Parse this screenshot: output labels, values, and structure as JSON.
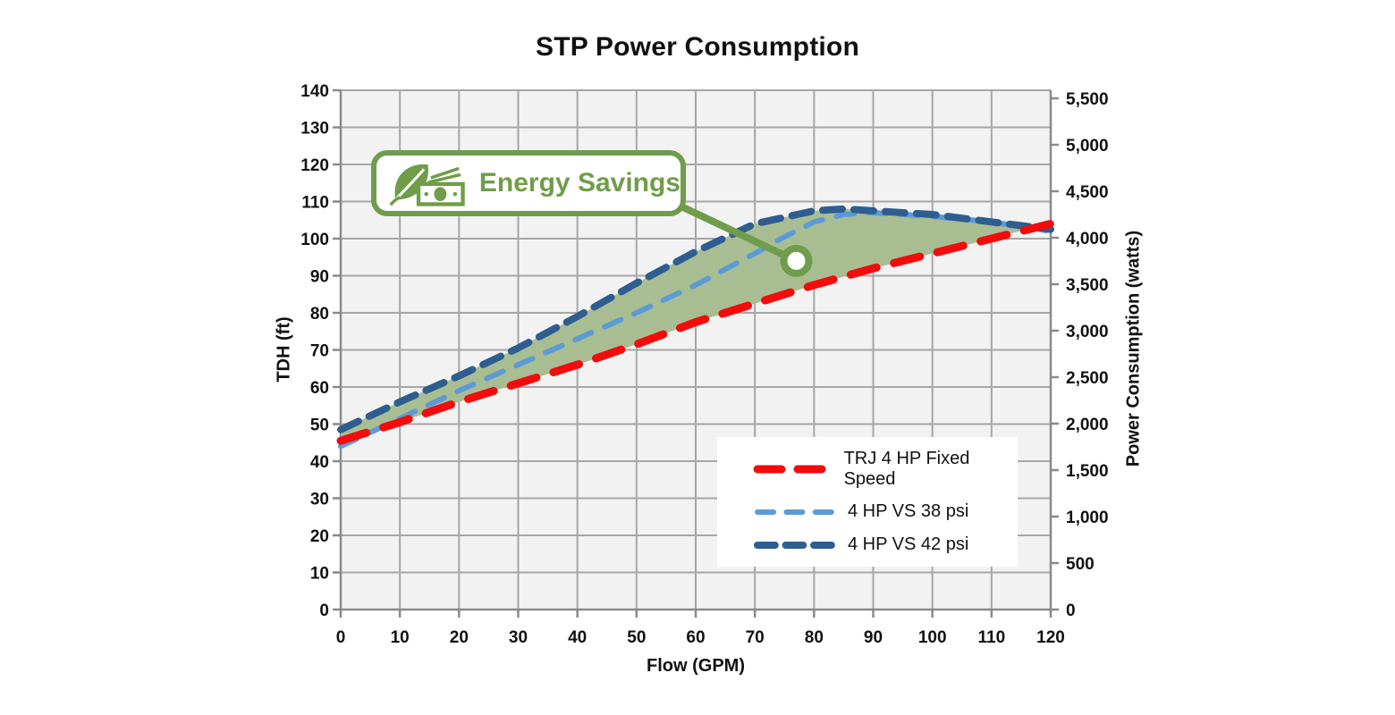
{
  "page": {
    "background": "#ffffff"
  },
  "chart_data": {
    "type": "line",
    "title": "STP Power Consumption",
    "xlabel": "Flow (GPM)",
    "ylabel": "TDH (ft)",
    "y2label": "Power Consumption (watts)",
    "xlim": [
      0,
      120
    ],
    "ylim": [
      0,
      140
    ],
    "y2lim": [
      0,
      5500
    ],
    "xticks": [
      0,
      10,
      20,
      30,
      40,
      50,
      60,
      70,
      80,
      90,
      100,
      110,
      120
    ],
    "yticks": [
      0,
      10,
      20,
      30,
      40,
      50,
      60,
      70,
      80,
      90,
      100,
      110,
      120,
      130,
      140
    ],
    "y2ticks": [
      0,
      500,
      1000,
      1500,
      2000,
      2500,
      3000,
      3500,
      4000,
      4500,
      5000,
      5500
    ],
    "grid": true,
    "plot_bg": "#f2f2f2",
    "grid_color": "#a6a6a6",
    "axis_color": "#8a8a8a",
    "tick_color": "#111111",
    "legend_position": "inside-bottom-right",
    "series": [
      {
        "name": "TRJ 4 HP Fixed Speed",
        "color": "#f40b0b",
        "dash": [
          30,
          20
        ],
        "width": 9,
        "points": [
          [
            0,
            45.5
          ],
          [
            10,
            50.5
          ],
          [
            20,
            56
          ],
          [
            30,
            61
          ],
          [
            40,
            66
          ],
          [
            50,
            71.5
          ],
          [
            60,
            77.5
          ],
          [
            70,
            82.5
          ],
          [
            80,
            87.5
          ],
          [
            90,
            92
          ],
          [
            100,
            96
          ],
          [
            110,
            100
          ],
          [
            120,
            104
          ]
        ]
      },
      {
        "name": "4 HP VS 38 psi",
        "color": "#5b9bd5",
        "dash": [
          20,
          16
        ],
        "width": 6,
        "points": [
          [
            0,
            44
          ],
          [
            10,
            51.5
          ],
          [
            20,
            59
          ],
          [
            30,
            66
          ],
          [
            40,
            73
          ],
          [
            50,
            80
          ],
          [
            60,
            87.5
          ],
          [
            70,
            96
          ],
          [
            75,
            100.5
          ],
          [
            80,
            104.5
          ],
          [
            85,
            106.5
          ],
          [
            90,
            107
          ],
          [
            100,
            106
          ],
          [
            110,
            104.5
          ],
          [
            120,
            102
          ]
        ]
      },
      {
        "name": "4 HP VS 42 psi",
        "color": "#2e5d90",
        "dash": [
          22,
          13
        ],
        "width": 8,
        "points": [
          [
            0,
            48.5
          ],
          [
            10,
            56
          ],
          [
            20,
            63
          ],
          [
            30,
            70.5
          ],
          [
            40,
            79
          ],
          [
            50,
            88
          ],
          [
            60,
            96.5
          ],
          [
            70,
            104
          ],
          [
            80,
            107.5
          ],
          [
            85,
            108
          ],
          [
            90,
            107.5
          ],
          [
            100,
            106.5
          ],
          [
            110,
            104.5
          ],
          [
            120,
            102.5
          ]
        ]
      }
    ],
    "savings_area": {
      "between": [
        "4 HP VS 42 psi",
        "TRJ 4 HP Fixed Speed"
      ],
      "x_end": 117,
      "y_end": 103,
      "color": "#a9bd92"
    }
  },
  "annotation": {
    "label": "Energy Savings",
    "accent_color": "#6f9d4a",
    "icon": "leaf-money-icon",
    "marker": {
      "flow": 77,
      "tdh": 94
    }
  }
}
